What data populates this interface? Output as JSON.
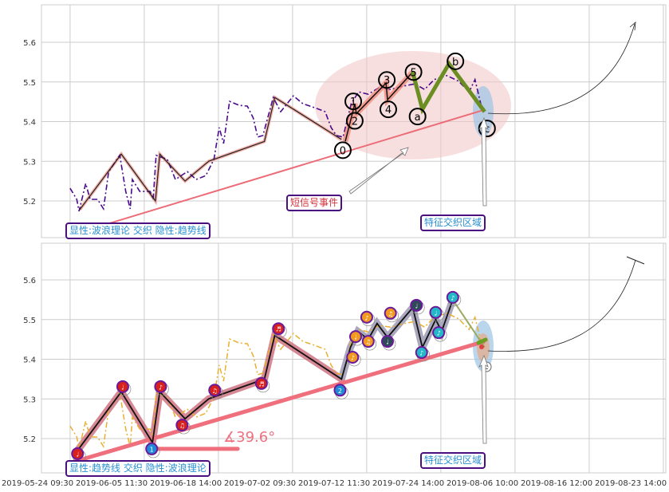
{
  "chart_data": {
    "type": "line",
    "x_tick_labels": [
      "2019-05-24 09:30",
      "2019-06-05 11:30",
      "2019-06-18 14:00",
      "2019-07-02 09:30",
      "2019-07-12 11:30",
      "2019-07-24 14:00",
      "2019-08-06 10:00",
      "2019-08-16 12:00",
      "2019-08-23 14:00"
    ],
    "y_ticks": [
      5.2,
      5.3,
      5.4,
      5.5,
      5.6
    ],
    "ylim": [
      5.11,
      5.695
    ],
    "xlim_index": [
      0.05,
      8.45
    ],
    "grid": true,
    "price": [
      [
        0.44,
        5.232
      ],
      [
        0.53,
        5.204
      ],
      [
        0.56,
        5.174
      ],
      [
        0.65,
        5.244
      ],
      [
        0.71,
        5.204
      ],
      [
        0.81,
        5.204
      ],
      [
        0.89,
        5.18
      ],
      [
        0.96,
        5.274
      ],
      [
        1.11,
        5.315
      ],
      [
        1.19,
        5.224
      ],
      [
        1.25,
        5.18
      ],
      [
        1.28,
        5.254
      ],
      [
        1.38,
        5.224
      ],
      [
        1.52,
        5.224
      ],
      [
        1.56,
        5.204
      ],
      [
        1.6,
        5.315
      ],
      [
        1.75,
        5.305
      ],
      [
        1.86,
        5.254
      ],
      [
        2.02,
        5.274
      ],
      [
        2.14,
        5.254
      ],
      [
        2.27,
        5.264
      ],
      [
        2.38,
        5.305
      ],
      [
        2.45,
        5.385
      ],
      [
        2.51,
        5.345
      ],
      [
        2.59,
        5.451
      ],
      [
        2.72,
        5.441
      ],
      [
        2.83,
        5.439
      ],
      [
        2.91,
        5.409
      ],
      [
        2.97,
        5.361
      ],
      [
        3.04,
        5.365
      ],
      [
        3.18,
        5.461
      ],
      [
        3.28,
        5.425
      ],
      [
        3.45,
        5.465
      ],
      [
        3.58,
        5.445
      ],
      [
        3.74,
        5.435
      ],
      [
        3.88,
        5.425
      ],
      [
        3.96,
        5.385
      ],
      [
        4.03,
        5.365
      ],
      [
        4.12,
        5.361
      ],
      [
        4.23,
        5.445
      ],
      [
        4.33,
        5.475
      ],
      [
        4.46,
        5.469
      ],
      [
        4.6,
        5.485
      ],
      [
        4.76,
        5.481
      ],
      [
        4.92,
        5.489
      ],
      [
        5.09,
        5.495
      ],
      [
        5.22,
        5.481
      ],
      [
        5.35,
        5.506
      ],
      [
        5.52,
        5.516
      ],
      [
        5.68,
        5.502
      ],
      [
        5.82,
        5.475
      ],
      [
        5.9,
        5.506
      ],
      [
        5.99,
        5.435
      ]
    ],
    "panels": [
      {
        "name": "top",
        "price_color": "#4b0a8c",
        "prior_wave": [
          [
            0.57,
            5.178
          ],
          [
            1.13,
            5.318
          ],
          [
            1.59,
            5.2
          ],
          [
            1.65,
            5.318
          ],
          [
            1.99,
            5.25
          ],
          [
            2.31,
            5.3
          ],
          [
            3.06,
            5.35
          ],
          [
            3.2,
            5.461
          ],
          [
            4.1,
            5.355
          ]
        ],
        "impulse_wave": [
          {
            "label": "0",
            "x": 4.15,
            "y": 5.35
          },
          {
            "label": "1",
            "x": 4.28,
            "y": 5.445
          },
          {
            "label": "2",
            "x": 4.3,
            "y": 5.42
          },
          {
            "label": "3",
            "x": 4.7,
            "y": 5.497
          },
          {
            "label": "4",
            "x": 4.72,
            "y": 5.455
          },
          {
            "label": "5",
            "x": 5.06,
            "y": 5.525
          }
        ],
        "correction_wave": [
          {
            "label": "a",
            "x": 5.19,
            "y": 5.431
          },
          {
            "label": "b",
            "x": 5.55,
            "y": 5.546
          },
          {
            "label": "c",
            "x": 6.03,
            "y": 5.425
          }
        ],
        "trendline": [
          [
            0.73,
            5.13
          ],
          [
            6.03,
            5.43
          ]
        ],
        "legend_box": "显性:波浪理论 交织 隐性:趋势线",
        "signal_label": "短信号事件",
        "zone_label": "特征交织区域"
      },
      {
        "name": "bottom",
        "price_color": "#e8b030",
        "wave": [
          [
            0.54,
            5.17
          ],
          [
            1.13,
            5.318
          ],
          [
            1.55,
            5.19
          ],
          [
            1.65,
            5.318
          ],
          [
            1.99,
            5.25
          ],
          [
            2.31,
            5.3
          ],
          [
            3.06,
            5.35
          ],
          [
            3.2,
            5.46
          ],
          [
            4.1,
            5.35
          ],
          [
            4.22,
            5.43
          ],
          [
            4.32,
            5.47
          ],
          [
            4.46,
            5.45
          ],
          [
            4.58,
            5.49
          ],
          [
            4.72,
            5.455
          ],
          [
            5.06,
            5.53
          ],
          [
            5.19,
            5.43
          ],
          [
            5.37,
            5.5
          ],
          [
            5.45,
            5.47
          ],
          [
            5.6,
            5.55
          ]
        ],
        "tail": [
          [
            5.6,
            5.55
          ],
          [
            6.03,
            5.43
          ]
        ],
        "trendline": [
          [
            0.46,
            5.14
          ],
          [
            6.03,
            5.445
          ]
        ],
        "angle_label": "∡39.6°",
        "angle_line": [
          [
            1.54,
            5.174
          ],
          [
            2.7,
            5.174
          ]
        ],
        "markers": [
          {
            "x": 0.54,
            "y": 5.162,
            "color": "#d8201c",
            "glyph": "♩"
          },
          {
            "x": 1.15,
            "y": 5.331,
            "color": "#d8201c",
            "glyph": "♩"
          },
          {
            "x": 1.66,
            "y": 5.331,
            "color": "#d8201c",
            "glyph": "♪"
          },
          {
            "x": 1.95,
            "y": 5.234,
            "color": "#d8201c",
            "glyph": "♫"
          },
          {
            "x": 2.39,
            "y": 5.322,
            "color": "#d8201c",
            "glyph": "♫"
          },
          {
            "x": 3.02,
            "y": 5.339,
            "color": "#d8201c",
            "glyph": "♬"
          },
          {
            "x": 3.25,
            "y": 5.477,
            "color": "#d8201c",
            "glyph": "♬"
          },
          {
            "x": 1.54,
            "y": 5.174,
            "color": "#1f8ad8",
            "glyph": "1"
          },
          {
            "x": 4.08,
            "y": 5.322,
            "color": "#1f8ad8",
            "glyph": "2"
          },
          {
            "x": 4.25,
            "y": 5.405,
            "color": "#f29a20",
            "glyph": "♪"
          },
          {
            "x": 4.29,
            "y": 5.457,
            "color": "#f29a20",
            "glyph": "♩"
          },
          {
            "x": 4.44,
            "y": 5.506,
            "color": "#f29a20",
            "glyph": "♪"
          },
          {
            "x": 4.46,
            "y": 5.445,
            "color": "#f29a20",
            "glyph": "♫"
          },
          {
            "x": 4.76,
            "y": 5.516,
            "color": "#f29a20",
            "glyph": "♫"
          },
          {
            "x": 4.72,
            "y": 5.445,
            "color": "#2e4a58",
            "glyph": "♩"
          },
          {
            "x": 5.11,
            "y": 5.536,
            "color": "#2e4a58",
            "glyph": "♩"
          },
          {
            "x": 5.18,
            "y": 5.417,
            "color": "#22b8c8",
            "glyph": "♪"
          },
          {
            "x": 5.37,
            "y": 5.518,
            "color": "#22b8c8",
            "glyph": "♩"
          },
          {
            "x": 5.41,
            "y": 5.467,
            "color": "#22b8c8",
            "glyph": "♪"
          },
          {
            "x": 5.6,
            "y": 5.556,
            "color": "#22b8c8",
            "glyph": "♪"
          }
        ],
        "end_label": "c",
        "legend_box": "显性:趋势线 交织 隐性:波浪理论",
        "zone_label": "特征交织区域"
      }
    ]
  }
}
